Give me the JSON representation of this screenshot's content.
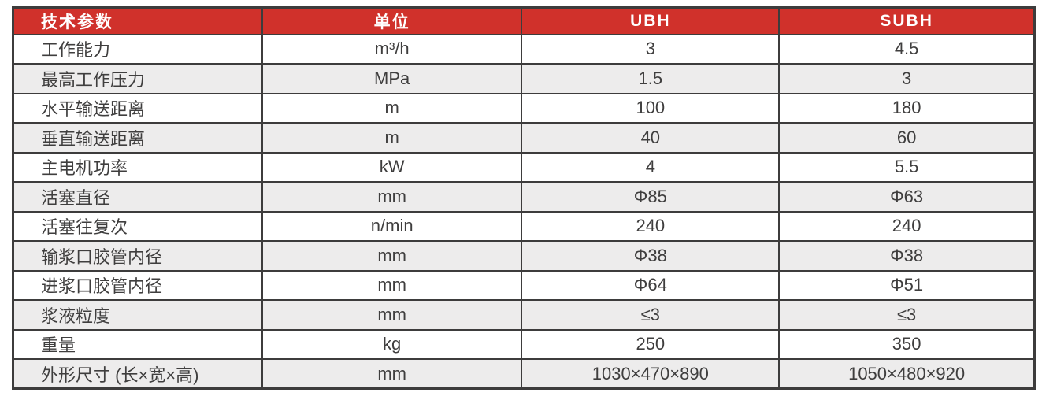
{
  "theme": {
    "header_bg": "#d0312b",
    "header_text": "#ffffff",
    "row_bg": "#ffffff",
    "row_alt_bg": "#edecec",
    "border_color": "#3d3c3c",
    "text_color": "#3f3e3e"
  },
  "table": {
    "columns": [
      {
        "key": "param",
        "label": "技术参数",
        "align": "left"
      },
      {
        "key": "unit",
        "label": "单位",
        "align": "center"
      },
      {
        "key": "ubh",
        "label": "UBH",
        "align": "center"
      },
      {
        "key": "subh",
        "label": "SUBH",
        "align": "center"
      }
    ],
    "rows": [
      {
        "param": "工作能力",
        "unit": "m³/h",
        "ubh": "3",
        "subh": "4.5"
      },
      {
        "param": "最高工作压力",
        "unit": "MPa",
        "ubh": "1.5",
        "subh": "3"
      },
      {
        "param": "水平输送距离",
        "unit": "m",
        "ubh": "100",
        "subh": "180"
      },
      {
        "param": "垂直输送距离",
        "unit": "m",
        "ubh": "40",
        "subh": "60"
      },
      {
        "param": "主电机功率",
        "unit": "kW",
        "ubh": "4",
        "subh": "5.5"
      },
      {
        "param": "活塞直径",
        "unit": "mm",
        "ubh": "Φ85",
        "subh": "Φ63"
      },
      {
        "param": "活塞往复次",
        "unit": "n/min",
        "ubh": "240",
        "subh": "240"
      },
      {
        "param": "输浆口胶管内径",
        "unit": "mm",
        "ubh": "Φ38",
        "subh": "Φ38"
      },
      {
        "param": "进浆口胶管内径",
        "unit": "mm",
        "ubh": "Φ64",
        "subh": "Φ51"
      },
      {
        "param": "浆液粒度",
        "unit": "mm",
        "ubh": "≤3",
        "subh": "≤3"
      },
      {
        "param": "重量",
        "unit": "kg",
        "ubh": "250",
        "subh": "350"
      },
      {
        "param": "外形尺寸 (长×宽×高)",
        "unit": "mm",
        "ubh": "1030×470×890",
        "subh": "1050×480×920"
      }
    ]
  }
}
